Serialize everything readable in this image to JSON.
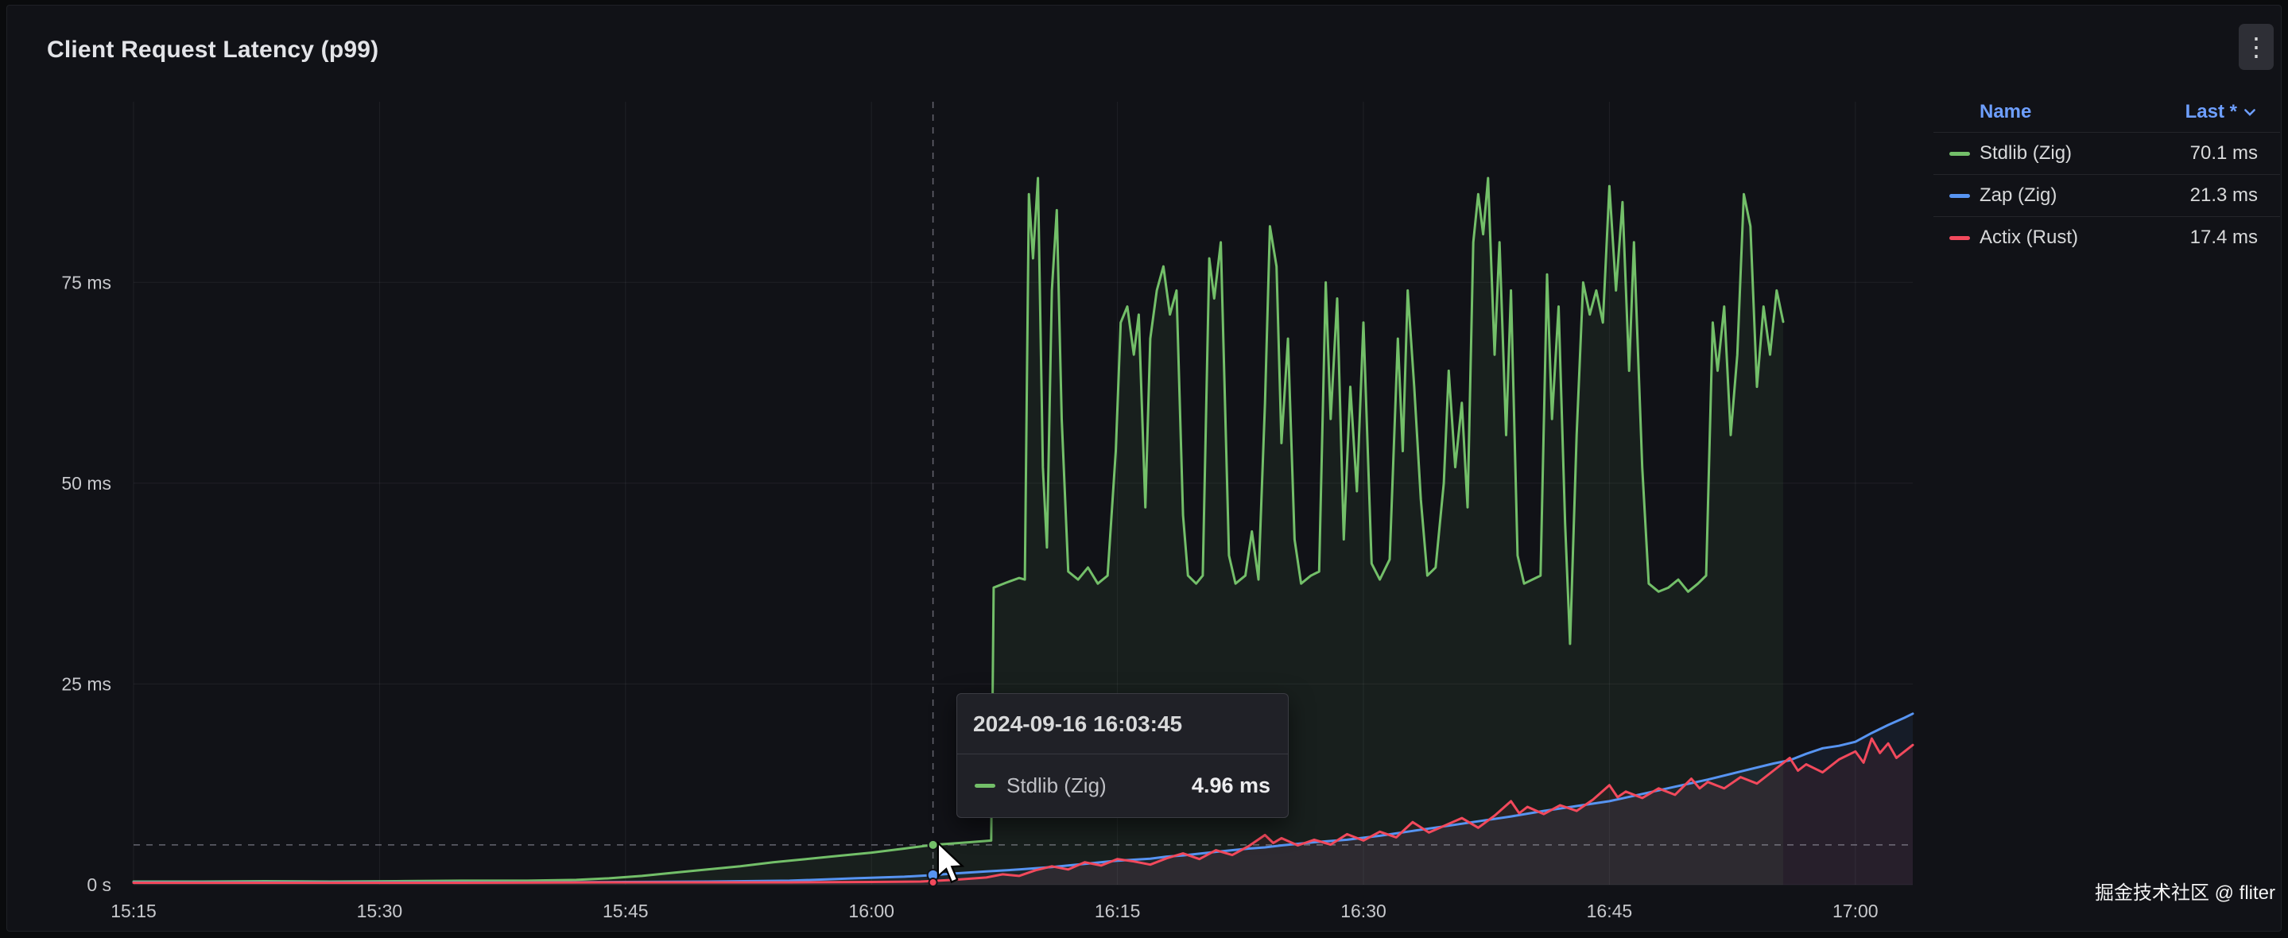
{
  "panel": {
    "title": "Client Request Latency (p99)"
  },
  "icons": {
    "kebab": "⋮"
  },
  "legend": {
    "header": {
      "name": "Name",
      "last": "Last *"
    },
    "items": [
      {
        "label": "Stdlib (Zig)",
        "value": "70.1 ms",
        "color": "#73bf69"
      },
      {
        "label": "Zap (Zig)",
        "value": "21.3 ms",
        "color": "#5794f2"
      },
      {
        "label": "Actix (Rust)",
        "value": "17.4 ms",
        "color": "#f2495c"
      }
    ]
  },
  "tooltip": {
    "timestamp": "2024-09-16 16:03:45",
    "series": "Stdlib (Zig)",
    "value": "4.96 ms",
    "color": "#73bf69"
  },
  "watermark": "掘金技术社区 @ fliter",
  "chart_data": {
    "type": "line",
    "title": "Client Request Latency (p99)",
    "unit": "ms",
    "x_tick_labels": [
      "15:15",
      "15:30",
      "15:45",
      "16:00",
      "16:15",
      "16:30",
      "16:45",
      "17:00"
    ],
    "x_tick_minutes": [
      0,
      15,
      30,
      45,
      60,
      75,
      90,
      105
    ],
    "x_range_minutes": [
      0,
      108.5
    ],
    "y_tick_labels": [
      "0 s",
      "25 ms",
      "50 ms",
      "75 ms"
    ],
    "y_ticks": [
      0,
      25,
      50,
      75
    ],
    "ylim": [
      0,
      97.5
    ],
    "legend_position": "top-right",
    "grid": true,
    "crosshair": {
      "t_minutes": 48.75,
      "hover_value_ms": 4.96,
      "points": [
        {
          "series": "Stdlib (Zig)",
          "value": 4.96,
          "color": "#73bf69",
          "r": 6
        },
        {
          "series": "Zap (Zig)",
          "value": 1.2,
          "color": "#5794f2",
          "r": 7
        },
        {
          "series": "Actix (Rust)",
          "value": 0.3,
          "color": "#f2495c",
          "r": 5
        }
      ]
    },
    "series": [
      {
        "name": "Stdlib (Zig)",
        "color": "#73bf69",
        "last": 70.1,
        "points": [
          [
            0,
            0.4
          ],
          [
            4,
            0.4
          ],
          [
            8,
            0.45
          ],
          [
            12,
            0.4
          ],
          [
            16,
            0.45
          ],
          [
            20,
            0.5
          ],
          [
            24,
            0.5
          ],
          [
            27,
            0.6
          ],
          [
            29,
            0.8
          ],
          [
            31,
            1.1
          ],
          [
            33,
            1.5
          ],
          [
            35,
            1.9
          ],
          [
            37,
            2.3
          ],
          [
            39,
            2.8
          ],
          [
            41,
            3.2
          ],
          [
            43,
            3.6
          ],
          [
            45,
            4.0
          ],
          [
            47,
            4.5
          ],
          [
            48.75,
            4.96
          ],
          [
            50,
            5.15
          ],
          [
            51,
            5.3
          ],
          [
            52.3,
            5.5
          ],
          [
            52.45,
            37
          ],
          [
            53.2,
            37.6
          ],
          [
            54.0,
            38.2
          ],
          [
            54.35,
            38
          ],
          [
            54.6,
            86
          ],
          [
            54.85,
            78
          ],
          [
            55.15,
            88
          ],
          [
            55.45,
            52
          ],
          [
            55.7,
            42
          ],
          [
            56.0,
            74
          ],
          [
            56.3,
            84
          ],
          [
            56.6,
            58
          ],
          [
            57.0,
            39
          ],
          [
            57.6,
            38
          ],
          [
            58.2,
            39.5
          ],
          [
            58.8,
            37.5
          ],
          [
            59.4,
            38.5
          ],
          [
            59.9,
            54
          ],
          [
            60.2,
            70
          ],
          [
            60.6,
            72
          ],
          [
            61.0,
            66
          ],
          [
            61.3,
            71
          ],
          [
            61.7,
            47
          ],
          [
            62.0,
            68
          ],
          [
            62.4,
            74
          ],
          [
            62.8,
            77
          ],
          [
            63.2,
            71
          ],
          [
            63.6,
            74
          ],
          [
            64.0,
            46
          ],
          [
            64.3,
            38.5
          ],
          [
            64.8,
            37.5
          ],
          [
            65.2,
            38.5
          ],
          [
            65.6,
            78
          ],
          [
            65.9,
            73
          ],
          [
            66.3,
            80
          ],
          [
            66.8,
            41
          ],
          [
            67.2,
            37.5
          ],
          [
            67.8,
            38.5
          ],
          [
            68.2,
            44
          ],
          [
            68.6,
            38
          ],
          [
            69.0,
            60
          ],
          [
            69.3,
            82
          ],
          [
            69.7,
            77
          ],
          [
            70.0,
            55
          ],
          [
            70.4,
            68
          ],
          [
            70.8,
            43
          ],
          [
            71.2,
            37.5
          ],
          [
            71.8,
            38.5
          ],
          [
            72.3,
            39
          ],
          [
            72.7,
            75
          ],
          [
            73.0,
            58
          ],
          [
            73.4,
            73
          ],
          [
            73.8,
            43
          ],
          [
            74.2,
            62
          ],
          [
            74.6,
            49
          ],
          [
            75.0,
            70
          ],
          [
            75.5,
            40
          ],
          [
            76.0,
            38
          ],
          [
            76.6,
            40.5
          ],
          [
            77.1,
            68
          ],
          [
            77.4,
            54
          ],
          [
            77.7,
            74
          ],
          [
            78.1,
            62
          ],
          [
            78.5,
            48
          ],
          [
            78.9,
            38.5
          ],
          [
            79.4,
            39.5
          ],
          [
            79.9,
            50
          ],
          [
            80.2,
            64
          ],
          [
            80.6,
            52
          ],
          [
            81.0,
            60
          ],
          [
            81.35,
            47
          ],
          [
            81.7,
            80
          ],
          [
            82.0,
            86
          ],
          [
            82.3,
            81
          ],
          [
            82.6,
            88
          ],
          [
            83.0,
            66
          ],
          [
            83.3,
            80
          ],
          [
            83.7,
            56
          ],
          [
            84.0,
            74
          ],
          [
            84.4,
            41
          ],
          [
            84.8,
            37.5
          ],
          [
            85.3,
            38
          ],
          [
            85.8,
            38.5
          ],
          [
            86.2,
            76
          ],
          [
            86.5,
            58
          ],
          [
            86.9,
            72
          ],
          [
            87.3,
            45
          ],
          [
            87.6,
            30
          ],
          [
            88.0,
            56
          ],
          [
            88.4,
            75
          ],
          [
            88.8,
            71
          ],
          [
            89.2,
            74
          ],
          [
            89.6,
            70
          ],
          [
            90.0,
            87
          ],
          [
            90.4,
            74
          ],
          [
            90.8,
            85
          ],
          [
            91.2,
            64
          ],
          [
            91.5,
            80
          ],
          [
            92.0,
            52
          ],
          [
            92.4,
            37.5
          ],
          [
            93.0,
            36.5
          ],
          [
            93.6,
            37
          ],
          [
            94.2,
            38
          ],
          [
            94.8,
            36.5
          ],
          [
            95.4,
            37.5
          ],
          [
            95.9,
            38.5
          ],
          [
            96.3,
            70
          ],
          [
            96.6,
            64
          ],
          [
            97.0,
            72
          ],
          [
            97.4,
            56
          ],
          [
            97.8,
            66
          ],
          [
            98.2,
            86
          ],
          [
            98.6,
            82
          ],
          [
            99.0,
            62
          ],
          [
            99.4,
            72
          ],
          [
            99.8,
            66
          ],
          [
            100.2,
            74
          ],
          [
            100.6,
            70.1
          ]
        ]
      },
      {
        "name": "Zap (Zig)",
        "color": "#5794f2",
        "last": 21.3,
        "points": [
          [
            0,
            0.3
          ],
          [
            6,
            0.3
          ],
          [
            12,
            0.3
          ],
          [
            18,
            0.3
          ],
          [
            24,
            0.3
          ],
          [
            30,
            0.35
          ],
          [
            35,
            0.4
          ],
          [
            40,
            0.5
          ],
          [
            44,
            0.8
          ],
          [
            47,
            1.0
          ],
          [
            48.75,
            1.2
          ],
          [
            50,
            1.4
          ],
          [
            52,
            1.65
          ],
          [
            54,
            1.9
          ],
          [
            56,
            2.2
          ],
          [
            58,
            2.6
          ],
          [
            60,
            3.0
          ],
          [
            62,
            3.25
          ],
          [
            63,
            3.5
          ],
          [
            64,
            3.65
          ],
          [
            66,
            4.1
          ],
          [
            68,
            4.5
          ],
          [
            69,
            4.65
          ],
          [
            70,
            4.9
          ],
          [
            72,
            5.3
          ],
          [
            74,
            5.6
          ],
          [
            76,
            6.1
          ],
          [
            78,
            6.7
          ],
          [
            80,
            7.3
          ],
          [
            82,
            7.9
          ],
          [
            84,
            8.5
          ],
          [
            86,
            9.2
          ],
          [
            88,
            9.8
          ],
          [
            90,
            10.4
          ],
          [
            92,
            11.3
          ],
          [
            94,
            12.2
          ],
          [
            96,
            13.1
          ],
          [
            98,
            14.1
          ],
          [
            100,
            15.1
          ],
          [
            101,
            15.5
          ],
          [
            102,
            16.3
          ],
          [
            103,
            17.0
          ],
          [
            104,
            17.3
          ],
          [
            105,
            17.8
          ],
          [
            106,
            18.9
          ],
          [
            107,
            19.9
          ],
          [
            108,
            20.8
          ],
          [
            108.5,
            21.3
          ]
        ]
      },
      {
        "name": "Actix (Rust)",
        "color": "#f2495c",
        "last": 17.4,
        "points": [
          [
            0,
            0.25
          ],
          [
            10,
            0.25
          ],
          [
            20,
            0.25
          ],
          [
            30,
            0.3
          ],
          [
            40,
            0.3
          ],
          [
            45,
            0.35
          ],
          [
            48,
            0.4
          ],
          [
            50,
            0.6
          ],
          [
            52,
            0.9
          ],
          [
            53,
            1.3
          ],
          [
            54,
            1.1
          ],
          [
            55,
            1.8
          ],
          [
            56,
            2.3
          ],
          [
            57,
            1.9
          ],
          [
            58,
            2.8
          ],
          [
            59,
            2.4
          ],
          [
            60,
            3.2
          ],
          [
            61,
            2.9
          ],
          [
            62,
            2.5
          ],
          [
            63,
            3.3
          ],
          [
            64,
            3.9
          ],
          [
            65,
            3.2
          ],
          [
            66,
            4.3
          ],
          [
            67,
            3.7
          ],
          [
            68,
            4.8
          ],
          [
            69,
            6.2
          ],
          [
            69.5,
            5.2
          ],
          [
            70,
            5.8
          ],
          [
            71,
            4.9
          ],
          [
            72,
            5.6
          ],
          [
            73,
            5.0
          ],
          [
            74,
            6.3
          ],
          [
            75,
            5.5
          ],
          [
            76,
            6.6
          ],
          [
            77,
            5.9
          ],
          [
            78,
            7.8
          ],
          [
            79,
            6.5
          ],
          [
            80,
            7.4
          ],
          [
            81,
            8.3
          ],
          [
            82,
            7.1
          ],
          [
            83,
            8.6
          ],
          [
            84,
            10.4
          ],
          [
            84.5,
            8.9
          ],
          [
            85,
            9.7
          ],
          [
            86,
            8.8
          ],
          [
            87,
            9.9
          ],
          [
            88,
            9.2
          ],
          [
            89,
            10.6
          ],
          [
            90,
            12.4
          ],
          [
            90.5,
            10.9
          ],
          [
            91,
            11.6
          ],
          [
            92,
            10.8
          ],
          [
            93,
            12.0
          ],
          [
            94,
            11.2
          ],
          [
            95,
            13.2
          ],
          [
            95.5,
            12.0
          ],
          [
            96,
            12.8
          ],
          [
            97,
            12.0
          ],
          [
            98,
            13.4
          ],
          [
            99,
            12.6
          ],
          [
            100,
            14.2
          ],
          [
            101,
            15.8
          ],
          [
            101.5,
            14.2
          ],
          [
            102,
            15.0
          ],
          [
            103,
            14.0
          ],
          [
            104,
            15.6
          ],
          [
            105,
            16.6
          ],
          [
            105.5,
            15.2
          ],
          [
            106,
            18.2
          ],
          [
            106.5,
            16.4
          ],
          [
            107,
            17.6
          ],
          [
            107.5,
            15.8
          ],
          [
            108,
            16.6
          ],
          [
            108.5,
            17.4
          ]
        ]
      }
    ]
  }
}
